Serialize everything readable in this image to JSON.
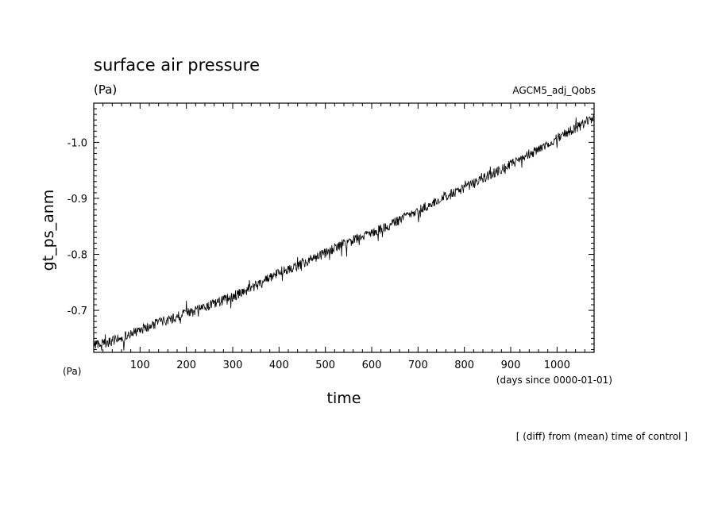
{
  "chart_data": {
    "type": "line",
    "title": "surface air pressure",
    "title_units": "(Pa)",
    "subtitle_right": "AGCM5_adj_Qobs",
    "xlabel": "time",
    "x_units": "(days since 0000-01-01)",
    "ylabel": "gt_ps_anm",
    "y_units": "(Pa)",
    "footnote": "[ (diff) from (mean) time of control ]",
    "xlim": [
      0,
      1080
    ],
    "ylim": [
      -0.625,
      -1.07
    ],
    "y_axis_inverted": true,
    "x_ticks": [
      100,
      200,
      300,
      400,
      500,
      600,
      700,
      800,
      900,
      1000
    ],
    "x_tick_labels": [
      "100",
      "200",
      "300",
      "400",
      "500",
      "600",
      "700",
      "800",
      "900",
      "1000"
    ],
    "y_ticks": [
      -0.7,
      -0.8,
      -0.9,
      -1.0
    ],
    "y_tick_labels": [
      "-0.7",
      "-0.8",
      "-0.9",
      "-1.0"
    ],
    "grid": false,
    "series": [
      {
        "name": "",
        "x": [
          0,
          40,
          80,
          120,
          160,
          200,
          240,
          280,
          320,
          360,
          400,
          440,
          480,
          520,
          560,
          600,
          640,
          680,
          720,
          760,
          800,
          840,
          880,
          920,
          960,
          1000,
          1040,
          1080
        ],
        "values": [
          -0.638,
          -0.645,
          -0.658,
          -0.672,
          -0.683,
          -0.695,
          -0.706,
          -0.718,
          -0.732,
          -0.748,
          -0.768,
          -0.78,
          -0.795,
          -0.81,
          -0.825,
          -0.838,
          -0.853,
          -0.87,
          -0.887,
          -0.903,
          -0.918,
          -0.935,
          -0.952,
          -0.968,
          -0.987,
          -1.008,
          -1.025,
          -1.045
        ]
      }
    ]
  }
}
